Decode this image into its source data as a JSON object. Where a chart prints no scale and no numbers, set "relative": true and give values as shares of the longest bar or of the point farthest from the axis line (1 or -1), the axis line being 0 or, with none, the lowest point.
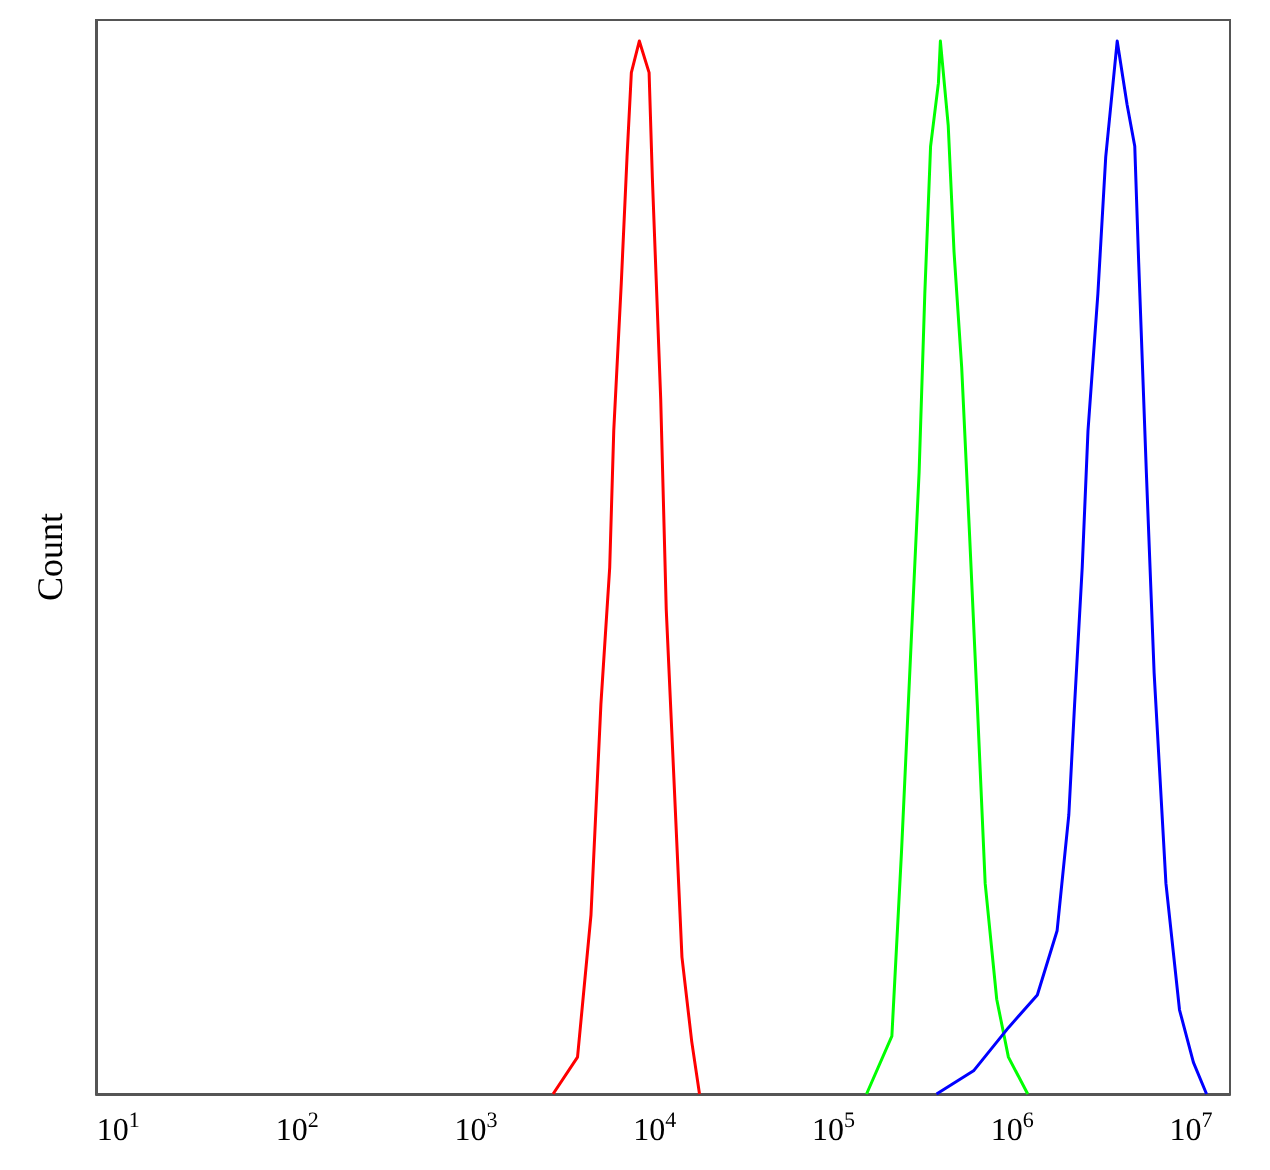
{
  "chart_data": {
    "type": "line",
    "ylabel": "Count",
    "relative": true,
    "log": "x",
    "grid": false,
    "marker": "none",
    "line_style": "solid",
    "tick_labels": "x",
    "xlim": [
      7.5,
      16500000
    ],
    "xticks": [
      {
        "value": 10,
        "label": "10$^{1}$"
      },
      {
        "value": 100,
        "label": "10$^{2}$"
      },
      {
        "value": 1000,
        "label": "10$^{3}$"
      },
      {
        "value": 10000,
        "label": "10$^{4}$"
      },
      {
        "value": 100000,
        "label": "10$^{5}$"
      },
      {
        "value": 1000000,
        "label": "10$^{6}$"
      },
      {
        "value": 10000000,
        "label": "10$^{7}$"
      }
    ],
    "series": [
      {
        "color": "#ff0000",
        "x": [
          2700,
          3700,
          4400,
          5000,
          5600,
          5900,
          6500,
          7000,
          7400,
          8200,
          9300,
          9700,
          10800,
          11600,
          12800,
          14200,
          16100,
          17800
        ],
        "values": [
          0,
          0.035,
          0.17,
          0.37,
          0.5,
          0.63,
          0.77,
          0.89,
          0.97,
          1,
          0.97,
          0.87,
          0.66,
          0.46,
          0.3,
          0.13,
          0.05,
          0
        ]
      },
      {
        "color": "#00ff00",
        "x": [
          153000,
          212000,
          240000,
          272000,
          301000,
          324000,
          349000,
          386000,
          396000,
          438000,
          472000,
          521000,
          577000,
          637000,
          705000,
          818000,
          951000,
          1220000
        ],
        "values": [
          0,
          0.055,
          0.23,
          0.43,
          0.59,
          0.76,
          0.9,
          0.96,
          1,
          0.92,
          0.8,
          0.69,
          0.53,
          0.37,
          0.2,
          0.09,
          0.035,
          0
        ]
      },
      {
        "color": "#0000ff",
        "x": [
          377000,
          607000,
          951000,
          1380000,
          1780000,
          2070000,
          2230000,
          2460000,
          2650000,
          3010000,
          3330000,
          3860000,
          4380000,
          4840000,
          5090000,
          5620000,
          6210000,
          7230000,
          8610000,
          10300000,
          12200000
        ],
        "values": [
          0,
          0.022,
          0.063,
          0.094,
          0.155,
          0.265,
          0.37,
          0.5,
          0.63,
          0.76,
          0.89,
          1,
          0.94,
          0.9,
          0.79,
          0.59,
          0.4,
          0.2,
          0.08,
          0.03,
          0
        ]
      }
    ]
  }
}
